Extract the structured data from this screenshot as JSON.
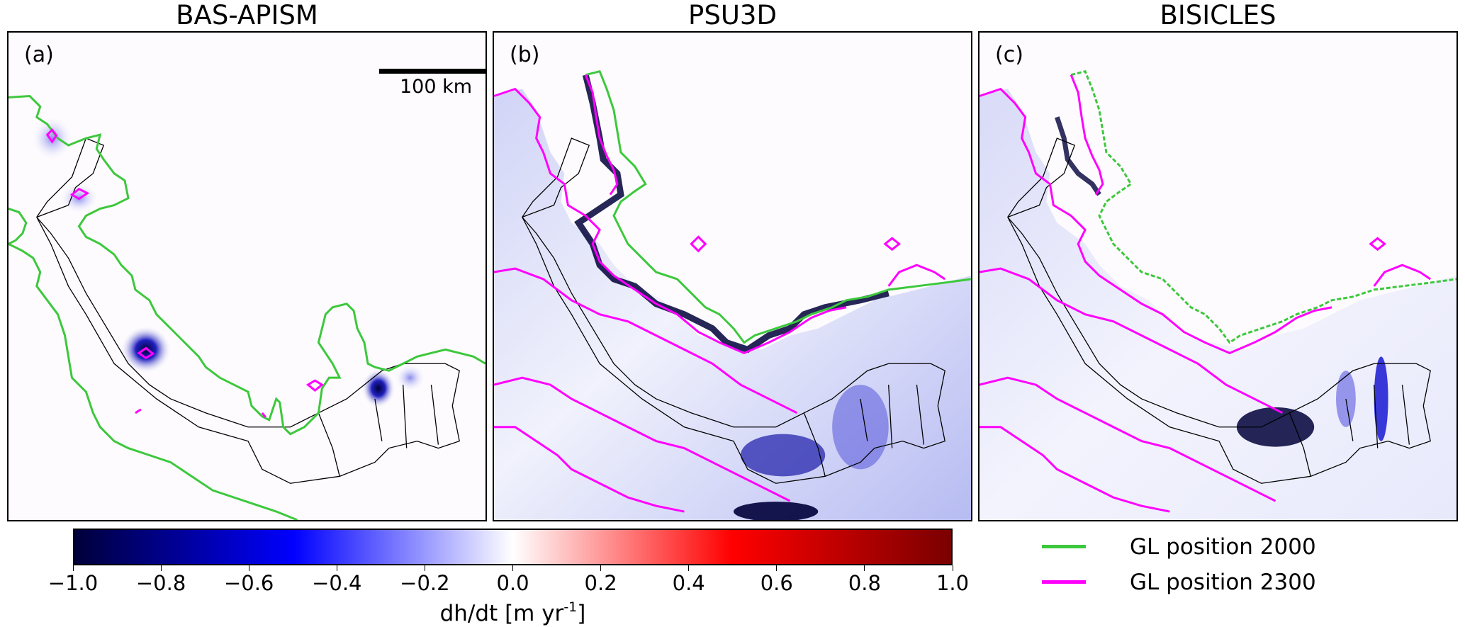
{
  "panels": [
    {
      "id": "a",
      "title": "BAS-APISM",
      "letter": "(a)",
      "has_scalebar": true
    },
    {
      "id": "b",
      "title": "PSU3D",
      "letter": "(b)",
      "has_scalebar": false
    },
    {
      "id": "c",
      "title": "BISICLES",
      "letter": "(c)",
      "has_scalebar": false
    }
  ],
  "scalebar": {
    "label": "100 km"
  },
  "colorbar": {
    "label_prefix": "dh/dt [m yr",
    "label_superscript": "-1",
    "label_suffix": "]",
    "ticks": [
      "−1.0",
      "−0.8",
      "−0.6",
      "−0.4",
      "−0.2",
      "0.0",
      "0.2",
      "0.4",
      "0.6",
      "0.8",
      "1.0"
    ],
    "colors": [
      "#00003a",
      "#0000ff",
      "#ffffff",
      "#ff0000",
      "#7a0000"
    ]
  },
  "legend": [
    {
      "label": "GL position 2000",
      "color": "#3cc83c"
    },
    {
      "label": "GL position 2300",
      "color": "#ff00ff"
    }
  ],
  "chart_data": {
    "type": "heatmap",
    "variable": "dh/dt",
    "units": "m yr^-1",
    "color_range": [
      -1.0,
      1.0
    ],
    "colormap": "seismic",
    "panels": [
      "BAS-APISM",
      "PSU3D",
      "BISICLES"
    ],
    "series": [
      {
        "name": "GL position 2000",
        "color": "#3cc83c"
      },
      {
        "name": "GL position 2300",
        "color": "#ff00ff"
      }
    ]
  }
}
